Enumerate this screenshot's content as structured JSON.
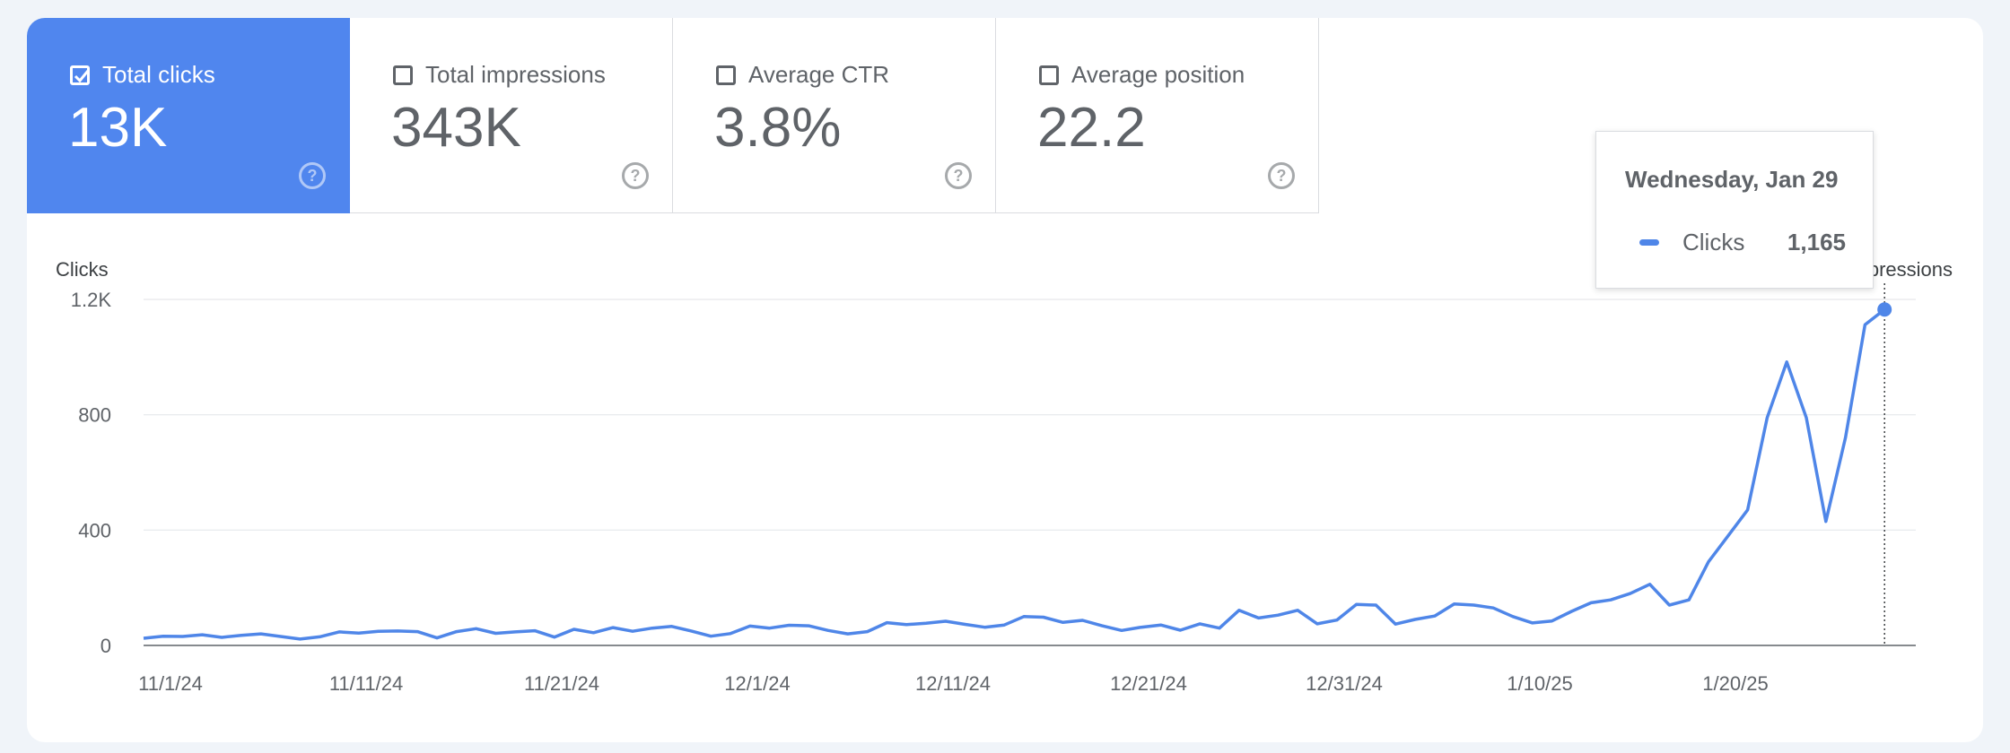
{
  "metrics": [
    {
      "label": "Total clicks",
      "value": "13K",
      "checked": true
    },
    {
      "label": "Total impressions",
      "value": "343K",
      "checked": false
    },
    {
      "label": "Average CTR",
      "value": "3.8%",
      "checked": false
    },
    {
      "label": "Average position",
      "value": "22.2",
      "checked": false
    }
  ],
  "tooltip": {
    "date": "Wednesday, Jan 29",
    "series": "Clicks",
    "value": "1,165"
  },
  "colors": {
    "accent": "#5086ee",
    "line": "#4f86e8"
  },
  "chart_data": {
    "type": "line",
    "ylabel": "Clicks",
    "y2label": "Impressions",
    "ylim": [
      0,
      1200
    ],
    "yticks": [
      0,
      400,
      800,
      1200
    ],
    "ytick_labels": [
      "0",
      "400",
      "800",
      "1.2K"
    ],
    "xtick_labels": [
      "11/1/24",
      "11/11/24",
      "11/21/24",
      "12/1/24",
      "12/11/24",
      "12/21/24",
      "12/31/24",
      "1/10/25",
      "1/20/25"
    ],
    "xtick_index": [
      0,
      10,
      20,
      30,
      40,
      50,
      60,
      70,
      80
    ],
    "grid": true,
    "series": [
      {
        "name": "Clicks",
        "values": [
          25,
          32,
          31,
          37,
          28,
          35,
          40,
          31,
          22,
          30,
          47,
          43,
          49,
          50,
          48,
          26,
          48,
          58,
          42,
          47,
          51,
          29,
          56,
          44,
          62,
          49,
          60,
          66,
          50,
          32,
          41,
          67,
          60,
          70,
          68,
          52,
          40,
          48,
          79,
          72,
          77,
          84,
          73,
          63,
          71,
          100,
          98,
          80,
          87,
          68,
          52,
          63,
          71,
          53,
          75,
          60,
          122,
          95,
          105,
          122,
          75,
          88,
          142,
          140,
          74,
          90,
          102,
          144,
          140,
          130,
          100,
          78,
          85,
          118,
          148,
          158,
          180,
          212,
          140,
          158,
          290,
          380,
          470,
          790,
          983,
          790,
          430,
          720,
          1112,
          1165
        ]
      }
    ],
    "highlight_index": 89
  }
}
